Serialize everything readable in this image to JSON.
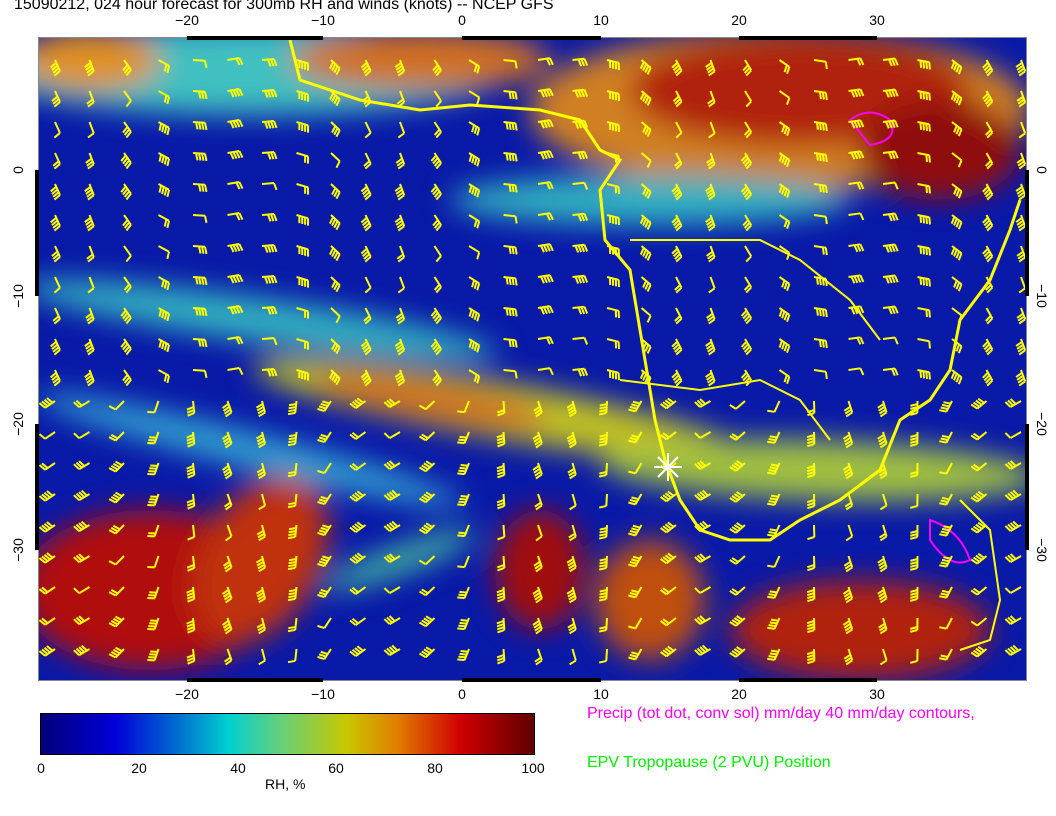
{
  "title": "15090212, 024 hour forecast for 300mb RH and winds (knots) -- NCEP GFS",
  "map": {
    "lon_ticks": [
      "−20",
      "−10",
      "0",
      "10",
      "20",
      "30"
    ],
    "lat_ticks": [
      "0",
      "−10",
      "−20",
      "−30"
    ],
    "barb_color": "#ffff00",
    "coast_color": "#ffff00",
    "marker": "white-star"
  },
  "colorbar": {
    "ticks": [
      "0",
      "20",
      "40",
      "60",
      "80",
      "100"
    ],
    "label": "RH, %",
    "colors": [
      "#00007a",
      "#0000d8",
      "#00d0d0",
      "#c8c800",
      "#d00000",
      "#600000"
    ]
  },
  "legend": {
    "precip": "Precip (tot dot, conv sol) mm/day 40 mm/day contours,",
    "epv": "EPV Tropopause (2 PVU) Position",
    "precip_color": "#ff00ff",
    "epv_color": "#00ee00"
  }
}
